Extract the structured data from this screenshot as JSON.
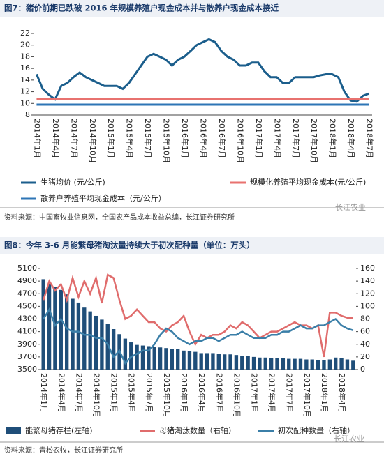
{
  "chart_data": [
    {
      "type": "line",
      "title": "图7：猪价前期已跌破 2016 年规模养殖户现金成本并与散养户现金成本接近",
      "categories": [
        "2014年1月",
        null,
        null,
        "2014年4月",
        null,
        null,
        "2014年7月",
        null,
        null,
        "2014年10月",
        null,
        null,
        "2015年1月",
        null,
        null,
        "2015年4月",
        null,
        null,
        "2015年7月",
        null,
        null,
        "2015年10月",
        null,
        null,
        "2016年1月",
        null,
        null,
        "2016年4月",
        null,
        null,
        "2016年7月",
        null,
        null,
        "2016年10月",
        null,
        null,
        "2017年1月",
        null,
        null,
        "2017年4月",
        null,
        null,
        "2017年7月",
        null,
        null,
        "2017年10月",
        null,
        null,
        "2018年1月",
        null,
        null,
        "2018年4月",
        null,
        null,
        "2018年7月"
      ],
      "series": [
        {
          "name": "生猪均价 (元/公斤)",
          "color": "#1b5e8c",
          "values": [
            15,
            12.5,
            11.5,
            10.7,
            13,
            13.5,
            14.5,
            15.3,
            14.5,
            14,
            13.5,
            13,
            13,
            13,
            12.5,
            13.5,
            15,
            16.5,
            18,
            18.5,
            18,
            17.5,
            16.5,
            17.5,
            18,
            19,
            20,
            20.5,
            21,
            20.5,
            19,
            18,
            17.5,
            16.5,
            16.5,
            17,
            17,
            15.5,
            14.5,
            14.5,
            13.5,
            13.5,
            14.5,
            14.5,
            14.5,
            14.5,
            14.8,
            15,
            15,
            14.5,
            12,
            10.5,
            10.3,
            11.3,
            11.7
          ]
        },
        {
          "name": "规模化养殖平均现金成本(元/公斤)",
          "color": "#e8726f",
          "values": [
            10.7,
            10.7,
            10.7,
            10.7,
            10.7,
            10.7,
            10.7,
            10.7,
            10.7,
            10.7,
            10.7,
            10.7,
            10.7,
            10.7,
            10.7,
            10.7,
            10.7,
            10.7,
            10.7,
            10.7,
            10.7,
            10.7,
            10.7,
            10.7,
            10.7,
            10.7,
            10.7,
            10.7,
            10.7,
            10.7,
            10.7,
            10.7,
            10.7,
            10.7,
            10.7,
            10.7,
            10.7,
            10.7,
            10.7,
            10.7,
            10.7,
            10.7,
            10.7,
            10.7,
            10.7,
            10.7,
            10.7,
            10.7,
            10.7,
            10.7,
            10.7,
            10.7,
            10.7,
            10.7,
            10.7
          ]
        },
        {
          "name": "散养户养殖平均现金成本（元/公斤）",
          "color": "#2e75b6",
          "values": [
            9.8,
            9.8,
            9.8,
            9.8,
            9.8,
            9.8,
            9.8,
            9.8,
            9.8,
            9.8,
            9.8,
            9.8,
            9.8,
            9.8,
            9.8,
            9.8,
            9.8,
            9.8,
            9.8,
            9.8,
            9.8,
            9.8,
            9.8,
            9.8,
            9.8,
            9.8,
            9.8,
            9.8,
            9.8,
            9.8,
            9.8,
            9.8,
            9.8,
            9.8,
            9.8,
            9.8,
            9.8,
            9.8,
            9.8,
            9.8,
            9.8,
            9.8,
            9.8,
            9.8,
            9.8,
            9.8,
            9.8,
            9.8,
            9.8,
            9.8,
            9.8,
            9.8,
            9.8,
            9.8,
            9.8
          ]
        }
      ],
      "ylim": [
        8,
        22
      ],
      "yticks": [
        8,
        10,
        12,
        14,
        16,
        18,
        20,
        22
      ],
      "source": "资料来源：中国畜牧业信息网，全国农产品成本收益总编，长江证券研究所",
      "watermark": "长江农业"
    },
    {
      "type": "bar",
      "title": "图8：今年 3-6 月能繁母猪淘汰量持续大于初次配种量（单位：万头）",
      "categories": [
        "2014年1月",
        null,
        null,
        "2014年4月",
        null,
        null,
        "2014年7月",
        null,
        null,
        "2014年10月",
        null,
        null,
        "2015年1月",
        null,
        null,
        "2015年4月",
        null,
        null,
        "2015年7月",
        null,
        null,
        "2015年10月",
        null,
        null,
        "2016年1月",
        null,
        null,
        "2016年4月",
        null,
        null,
        "2016年7月",
        null,
        null,
        "2016年10月",
        null,
        null,
        "2017年1月",
        null,
        null,
        "2017年4月",
        null,
        null,
        "2017年7月",
        null,
        null,
        "2017年10月",
        null,
        null,
        "2018年1月",
        null,
        null,
        "2018年4月",
        null,
        null
      ],
      "series": [
        {
          "name": "能繁母猪存栏(左轴)",
          "color": "#1f4e79",
          "values": [
            4930,
            4860,
            4810,
            4760,
            4690,
            4620,
            4560,
            4480,
            4420,
            4350,
            4290,
            4220,
            4140,
            4060,
            3990,
            3930,
            3890,
            3880,
            3870,
            3860,
            3850,
            3840,
            3830,
            3820,
            3800,
            3790,
            3780,
            3760,
            3760,
            3760,
            3750,
            3740,
            3740,
            3730,
            3720,
            3720,
            3700,
            3690,
            3690,
            3680,
            3680,
            3680,
            3670,
            3670,
            3670,
            3660,
            3660,
            3650,
            3650,
            3660,
            3690,
            3680,
            3660,
            3640
          ]
        },
        {
          "name": "母猪淘汰数量（右轴）",
          "color": "#e06c6c",
          "axis": "y2",
          "values": [
            110,
            140,
            125,
            135,
            110,
            145,
            115,
            140,
            120,
            145,
            105,
            150,
            145,
            110,
            80,
            85,
            95,
            85,
            75,
            75,
            65,
            60,
            70,
            75,
            85,
            60,
            40,
            55,
            50,
            55,
            55,
            60,
            70,
            65,
            75,
            70,
            60,
            50,
            55,
            60,
            60,
            65,
            70,
            75,
            70,
            70,
            65,
            70,
            20,
            90,
            90,
            85,
            82,
            82
          ]
        },
        {
          "name": "初次配种数量（右轴）",
          "color": "#3b7fa8",
          "axis": "y2",
          "values": [
            80,
            95,
            70,
            80,
            65,
            60,
            60,
            55,
            55,
            50,
            50,
            40,
            20,
            30,
            10,
            20,
            25,
            30,
            30,
            40,
            55,
            65,
            60,
            50,
            45,
            40,
            45,
            45,
            50,
            50,
            45,
            50,
            55,
            55,
            60,
            55,
            50,
            50,
            50,
            55,
            55,
            60,
            60,
            65,
            70,
            65,
            65,
            70,
            70,
            75,
            80,
            70,
            65,
            62
          ]
        }
      ],
      "ylim": [
        3500,
        5100
      ],
      "yticks": [
        3500,
        3700,
        3900,
        4100,
        4300,
        4500,
        4700,
        4900,
        5100
      ],
      "y2lim": [
        0,
        160
      ],
      "y2ticks": [
        0,
        20,
        40,
        60,
        80,
        100,
        120,
        140,
        160
      ],
      "source": "资料来源：青松农牧，长江证券研究所",
      "watermark": "长江农业"
    }
  ]
}
